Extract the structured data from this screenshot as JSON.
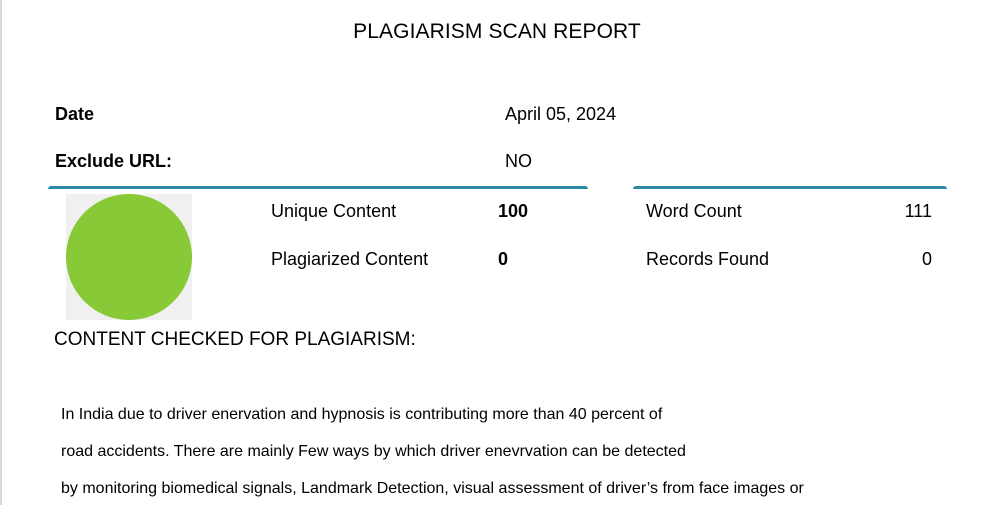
{
  "report": {
    "title": "PLAGIARISM SCAN REPORT"
  },
  "meta": {
    "date_label": "Date",
    "date_value": "April 05, 2024",
    "exclude_url_label": "Exclude URL:",
    "exclude_url_value": "NO"
  },
  "stats": {
    "unique_label": "Unique Content",
    "unique_value": "100",
    "plagiarized_label": "Plagiarized Content",
    "plagiarized_value": "0",
    "word_count_label": "Word Count",
    "word_count_value": "111",
    "records_label": "Records Found",
    "records_value": "0"
  },
  "chart_data": {
    "type": "pie",
    "categories": [
      "Unique Content",
      "Plagiarized Content"
    ],
    "values": [
      100,
      0
    ],
    "colors": [
      "#87c936",
      "#e0473b"
    ]
  },
  "content": {
    "heading": "CONTENT CHECKED FOR PLAGIARISM:",
    "lines": [
      "In India due to driver enervation and hypnosis is contributing more than 40 percent of",
      "road accidents. There are mainly Few ways by which driver enevrvation can be detected",
      "by monitoring biomedical signals, Landmark Detection, visual assessment of driver’s from face images or"
    ]
  }
}
